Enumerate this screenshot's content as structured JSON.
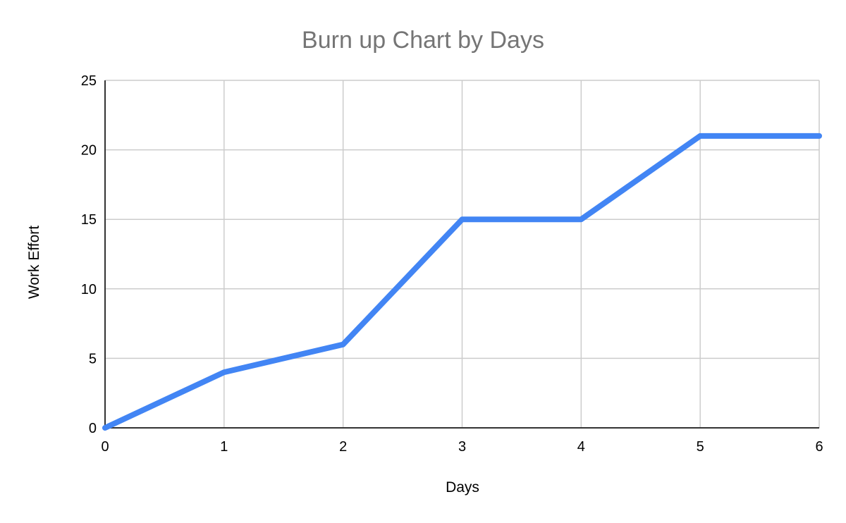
{
  "chart_data": {
    "type": "line",
    "title": "Burn up Chart by Days",
    "xlabel": "Days",
    "ylabel": "Work Effort",
    "xlim": [
      0,
      6
    ],
    "ylim": [
      0,
      25
    ],
    "x_ticks": [
      "0",
      "1",
      "2",
      "3",
      "4",
      "5",
      "6"
    ],
    "y_ticks": [
      "0",
      "5",
      "10",
      "15",
      "20",
      "25"
    ],
    "grid": true,
    "legend": "none",
    "series": [
      {
        "x": [
          0,
          1,
          2,
          3,
          4,
          5,
          6
        ],
        "values": [
          0,
          4,
          6,
          15,
          15,
          21,
          21
        ],
        "color": "#4285f4"
      }
    ]
  }
}
